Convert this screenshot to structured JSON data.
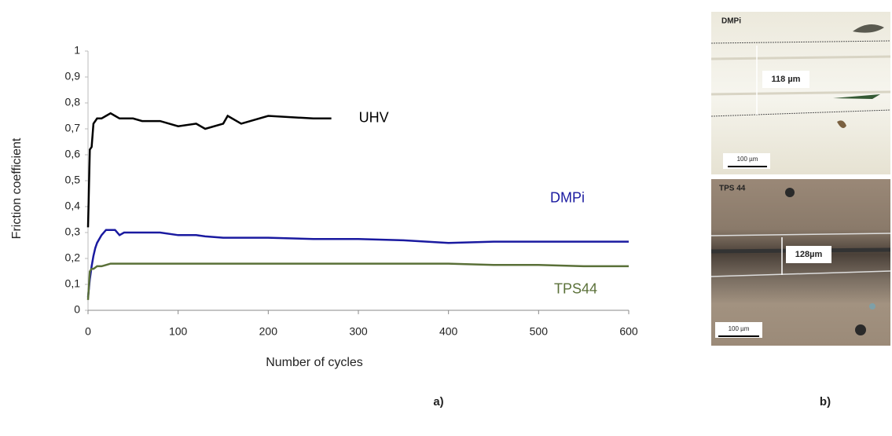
{
  "chart_data": {
    "type": "line",
    "x": [
      0,
      2,
      4,
      6,
      8,
      10,
      15,
      20,
      25,
      30,
      35,
      40,
      50,
      60,
      80,
      100,
      120,
      130,
      150,
      155,
      170,
      200,
      250,
      270,
      300,
      350,
      400,
      450,
      500,
      550,
      600
    ],
    "series": [
      {
        "name": "UHV",
        "color": "#000000",
        "values": [
          0.32,
          0.62,
          0.63,
          0.72,
          0.73,
          0.74,
          0.74,
          0.75,
          0.76,
          0.75,
          0.74,
          0.74,
          0.74,
          0.73,
          0.73,
          0.71,
          0.72,
          0.7,
          0.72,
          0.75,
          0.72,
          0.75,
          0.74,
          0.74,
          null,
          null,
          null,
          null,
          null,
          null,
          null
        ]
      },
      {
        "name": "DMPi",
        "color": "#1a1aa0",
        "values": [
          0.05,
          0.12,
          0.17,
          0.21,
          0.24,
          0.26,
          0.29,
          0.31,
          0.31,
          0.31,
          0.29,
          0.3,
          0.3,
          0.3,
          0.3,
          0.29,
          0.29,
          0.285,
          0.28,
          0.28,
          0.28,
          0.28,
          0.275,
          0.275,
          0.275,
          0.27,
          0.26,
          0.265,
          0.265,
          0.265,
          0.265
        ]
      },
      {
        "name": "TPS44",
        "color": "#5a7038",
        "values": [
          0.04,
          0.15,
          0.16,
          0.16,
          0.165,
          0.17,
          0.17,
          0.175,
          0.18,
          0.18,
          0.18,
          0.18,
          0.18,
          0.18,
          0.18,
          0.18,
          0.18,
          0.18,
          0.18,
          0.18,
          0.18,
          0.18,
          0.18,
          0.18,
          0.18,
          0.18,
          0.18,
          0.175,
          0.175,
          0.17,
          0.17
        ]
      }
    ],
    "xlabel": "Number of cycles",
    "ylabel": "Friction coefficient",
    "xlim": [
      0,
      600
    ],
    "xticks": [
      0,
      100,
      200,
      300,
      400,
      500,
      600
    ],
    "ylim": [
      0,
      1
    ],
    "yticks": [
      0,
      {
        "value": 0.1,
        "label": "0,1"
      },
      {
        "value": 0.2,
        "label": "0,2"
      },
      {
        "value": 0.3,
        "label": "0,3"
      },
      {
        "value": 0.4,
        "label": "0,4"
      },
      {
        "value": 0.5,
        "label": "0,5"
      },
      {
        "value": 0.6,
        "label": "0,6"
      },
      {
        "value": 0.7,
        "label": "0,7"
      },
      {
        "value": 0.8,
        "label": "0,8"
      },
      {
        "value": 0.9,
        "label": "0,9"
      },
      1
    ],
    "grid": false
  },
  "images": [
    {
      "label": "DMPi",
      "measurement": "118 µm",
      "scale": "100 µm"
    },
    {
      "label": "TPS 44",
      "measurement": "128µm",
      "scale": "100 µm"
    }
  ],
  "captions": {
    "a": "a)",
    "b": "b)"
  }
}
